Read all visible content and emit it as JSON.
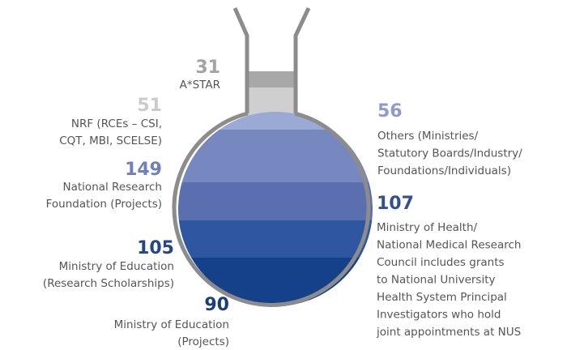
{
  "items": [
    {
      "value": "31",
      "lines": [
        "A*STAR"
      ]
    },
    {
      "value": "51",
      "lines": [
        "NRF (RCEs – CSI,",
        "CQT, MBI, SCELSE)"
      ]
    },
    {
      "value": "149",
      "lines": [
        "National Research",
        "Foundation (Projects)"
      ]
    },
    {
      "value": "105",
      "lines": [
        "Ministry of Education",
        "(Research Scholarships)"
      ]
    },
    {
      "value": "90",
      "lines": [
        "Ministry of Education",
        "(Projects)"
      ]
    },
    {
      "value": "56",
      "lines": [
        "Others (Ministries/",
        "Statutory Boards/Industry/",
        "Foundations/Individuals)"
      ]
    },
    {
      "value": "107",
      "lines": [
        "Ministry of Health/",
        "National Medical Research",
        "Council includes grants",
        "to National University",
        "Health System Principal",
        "Investigators who hold",
        "joint appointments at NUS"
      ]
    }
  ]
}
